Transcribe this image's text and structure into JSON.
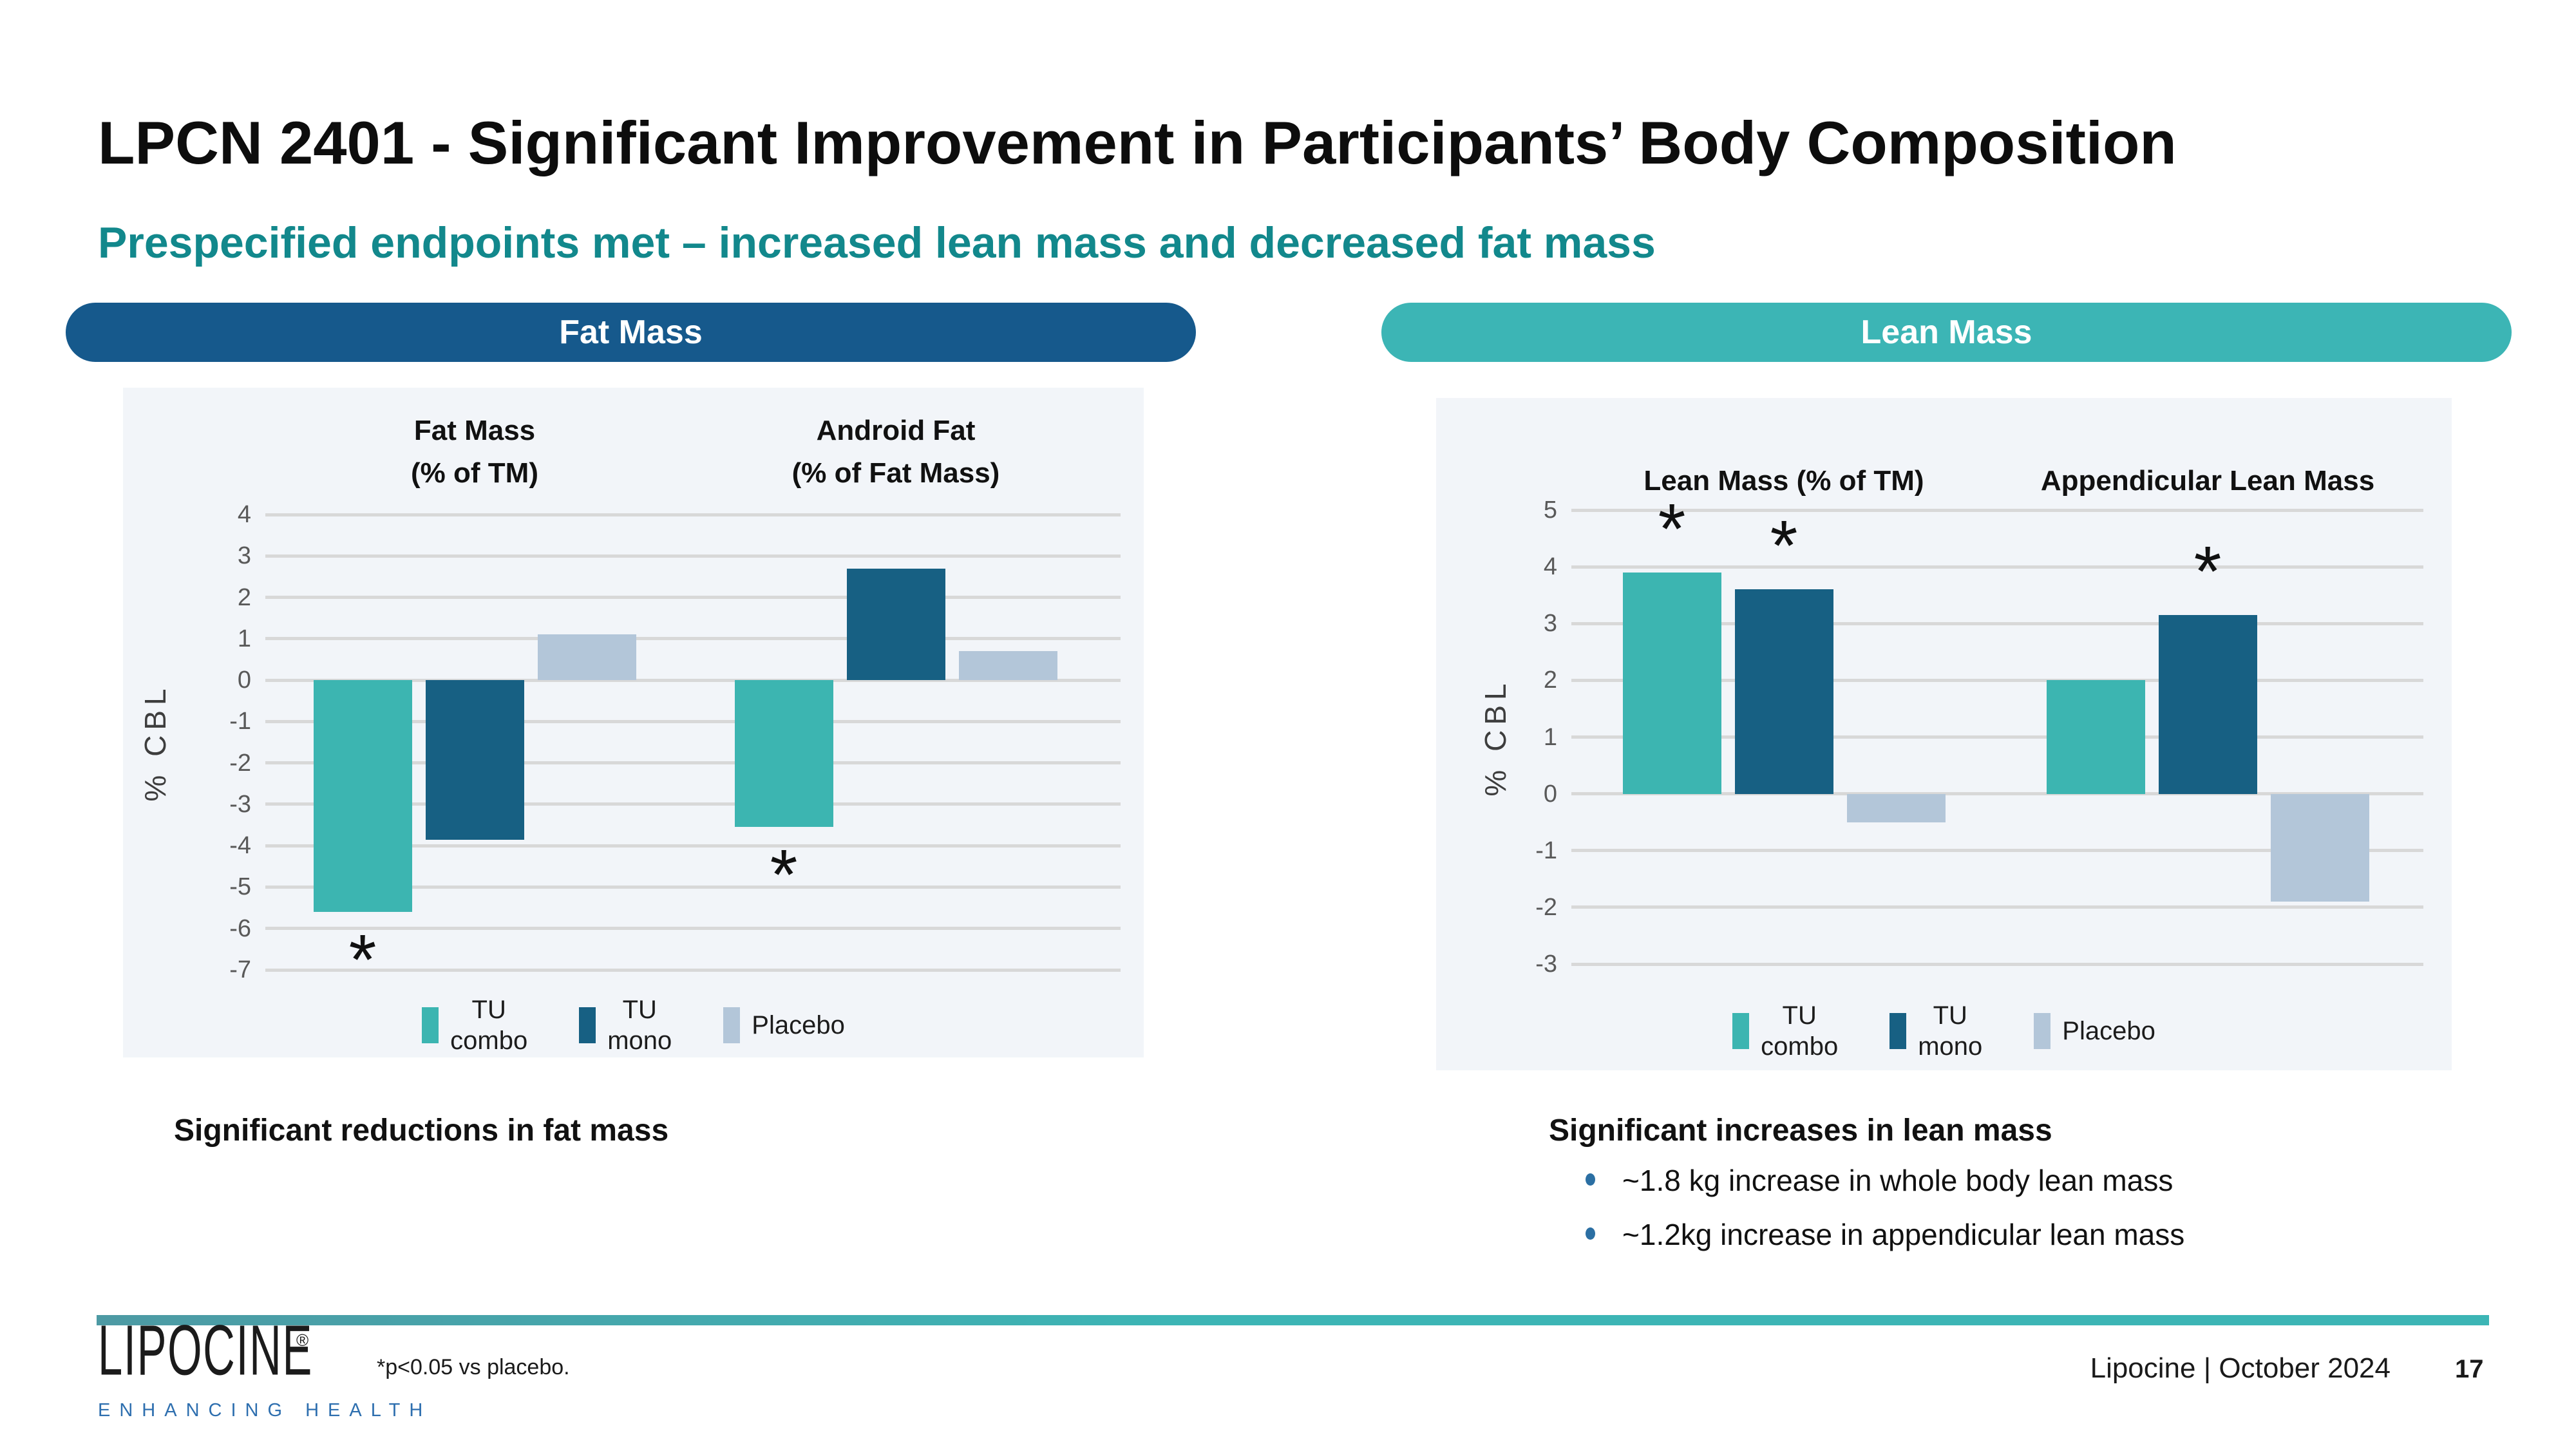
{
  "slide": {
    "title": "LPCN 2401 - Significant Improvement in Participants’ Body Composition",
    "subtitle": "Prespecified endpoints met – increased lean mass and decreased fat mass",
    "title_color": "#0d0d0d",
    "subtitle_color": "#12888c"
  },
  "chart_data": [
    {
      "type": "bar",
      "header": "Fat Mass",
      "header_color": "#16598c",
      "ylabel": "% CBL",
      "ylim": [
        -7,
        4
      ],
      "ytick_step": 1,
      "grid": true,
      "legend_position": "bottom",
      "categories": [
        "Fat Mass (% of TM)",
        "Android Fat (% of Fat Mass)"
      ],
      "group_title_lines": [
        [
          "Fat Mass",
          "(% of TM)"
        ],
        [
          "Android Fat",
          "(% of Fat Mass)"
        ]
      ],
      "series": [
        {
          "name": "TU combo",
          "color": "#3cb5b1",
          "values": [
            -5.6,
            -3.55
          ],
          "significant": [
            true,
            true
          ]
        },
        {
          "name": "TU mono",
          "color": "#176083",
          "values": [
            -3.85,
            2.7
          ],
          "significant": [
            false,
            false
          ]
        },
        {
          "name": "Placebo",
          "color": "#b3c6d9",
          "values": [
            1.1,
            0.7
          ],
          "significant": [
            false,
            false
          ]
        }
      ],
      "legend": [
        {
          "name": "TU combo",
          "lines": "TU\ncombo"
        },
        {
          "name": "TU mono",
          "lines": "TU\nmono"
        },
        {
          "name": "Placebo",
          "lines": "Placebo"
        }
      ],
      "sig_marker": "*",
      "caption": "Significant reductions in fat mass"
    },
    {
      "type": "bar",
      "header": "Lean Mass",
      "header_color": "#3cb5b5",
      "ylabel": "% CBL",
      "ylim": [
        -3,
        5
      ],
      "ytick_step": 1,
      "grid": true,
      "legend_position": "bottom",
      "categories": [
        "Lean Mass (% of TM)",
        "Appendicular Lean Mass"
      ],
      "group_title_lines": [
        [
          "Lean Mass (% of TM)"
        ],
        [
          "Appendicular Lean Mass"
        ]
      ],
      "series": [
        {
          "name": "TU combo",
          "color": "#3cb5b1",
          "values": [
            3.9,
            2.0
          ],
          "significant": [
            true,
            false
          ]
        },
        {
          "name": "TU mono",
          "color": "#176083",
          "values": [
            3.6,
            3.15
          ],
          "significant": [
            true,
            true
          ]
        },
        {
          "name": "Placebo",
          "color": "#b3c6d9",
          "values": [
            -0.5,
            -1.9
          ],
          "significant": [
            false,
            false
          ]
        }
      ],
      "legend": [
        {
          "name": "TU combo",
          "lines": "TU\ncombo"
        },
        {
          "name": "TU mono",
          "lines": "TU\nmono"
        },
        {
          "name": "Placebo",
          "lines": "Placebo"
        }
      ],
      "sig_marker": "*",
      "caption": "Significant increases in lean mass",
      "bullets": [
        "~1.8 kg increase in whole body lean mass",
        "~1.2kg increase in appendicular lean mass"
      ]
    }
  ],
  "footer": {
    "logo_text": "LIPOCINE",
    "logo_reg": "®",
    "logo_tagline": "ENHANCING HEALTH",
    "footnote": "*p<0.05 vs placebo.",
    "credit": "Lipocine | October 2024",
    "page_number": "17",
    "rule_color": "#3cb5b5",
    "bullet_color": "#2b6fa3"
  }
}
